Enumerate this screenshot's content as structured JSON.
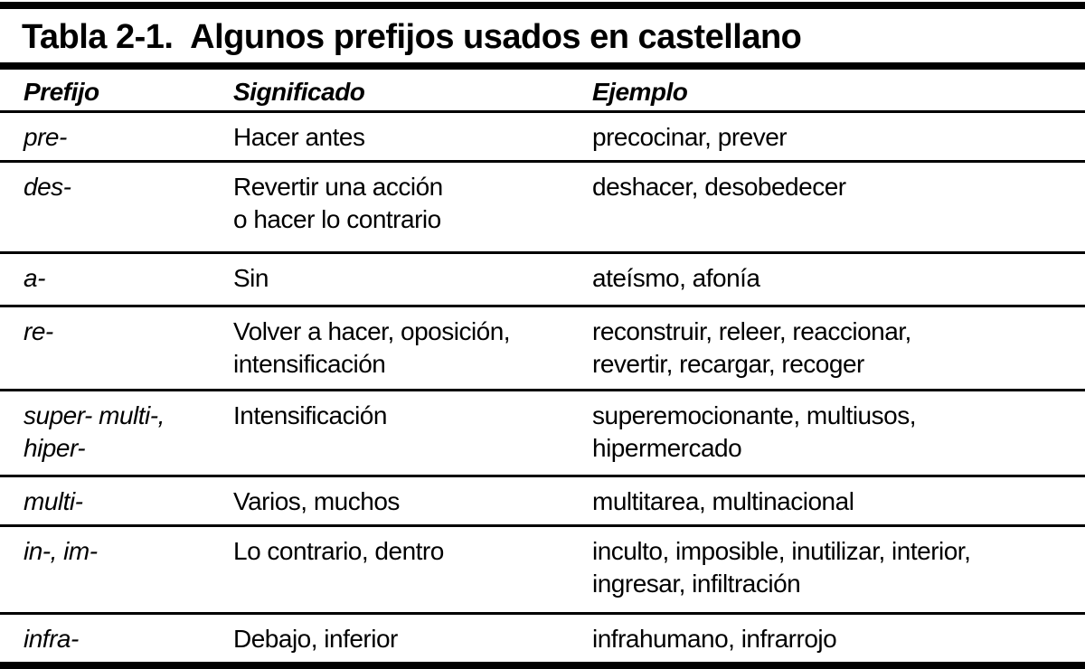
{
  "title": "Tabla 2-1.  Algunos prefijos usados en castellano",
  "columns": [
    "Prefijo",
    "Significado",
    "Ejemplo"
  ],
  "rows": [
    {
      "prefijo": "pre-",
      "significado": "Hacer antes",
      "ejemplo": "precocinar, prever"
    },
    {
      "prefijo": "des-",
      "significado": "Revertir una acción\no hacer lo contrario",
      "ejemplo": "deshacer, desobedecer"
    },
    {
      "prefijo": "a-",
      "significado": "Sin",
      "ejemplo": "ateísmo, afonía"
    },
    {
      "prefijo": "re-",
      "significado": "Volver a hacer, oposición,\nintensificación",
      "ejemplo": "reconstruir, releer, reaccionar,\nrevertir, recargar, recoger"
    },
    {
      "prefijo": "super- multi-,\nhiper-",
      "significado": "Intensificación",
      "ejemplo": "superemocionante, multiusos,\nhipermercado"
    },
    {
      "prefijo": "multi-",
      "significado": "Varios, muchos",
      "ejemplo": "multitarea, multinacional"
    },
    {
      "prefijo": "in-, im-",
      "significado": "Lo contrario, dentro",
      "ejemplo": "inculto, imposible, inutilizar, interior,\ningresar, infiltración"
    },
    {
      "prefijo": "infra-",
      "significado": "Debajo, inferior",
      "ejemplo": "infrahumano, infrarrojo"
    }
  ],
  "colors": {
    "text": "#000000",
    "background": "#ffffff",
    "rule": "#000000"
  }
}
